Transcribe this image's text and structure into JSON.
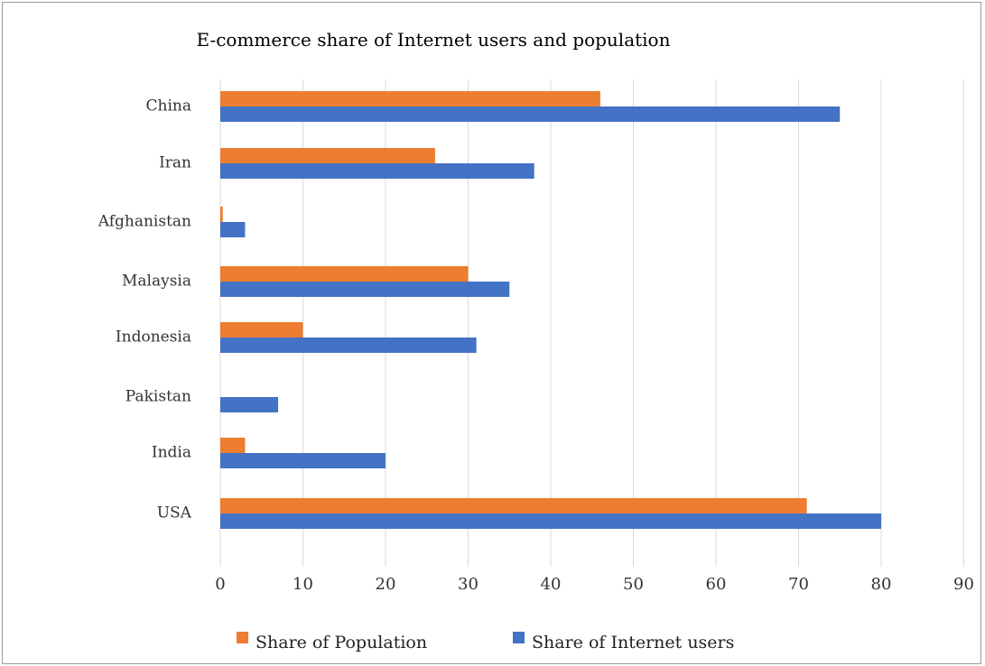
{
  "chart_data": {
    "type": "bar",
    "orientation": "horizontal",
    "title": "E-commerce share of Internet users and population",
    "categories": [
      "China",
      "Iran",
      "Afghanistan",
      "Malaysia",
      "Indonesia",
      "Pakistan",
      "India",
      "USA"
    ],
    "series": [
      {
        "name": "Share of Population",
        "color": "#ED7D31",
        "values": [
          46,
          26,
          0.3,
          30,
          10,
          null,
          3,
          71
        ]
      },
      {
        "name": "Share of Internet users",
        "color": "#4472C4",
        "values": [
          75,
          38,
          3,
          35,
          31,
          7,
          20,
          80
        ]
      }
    ],
    "xticks": [
      0,
      10,
      20,
      30,
      40,
      50,
      60,
      70,
      80,
      90
    ],
    "xlim": [
      0,
      90
    ],
    "xlabel": "",
    "ylabel": "",
    "grid": "vertical",
    "legend": "bottom"
  }
}
